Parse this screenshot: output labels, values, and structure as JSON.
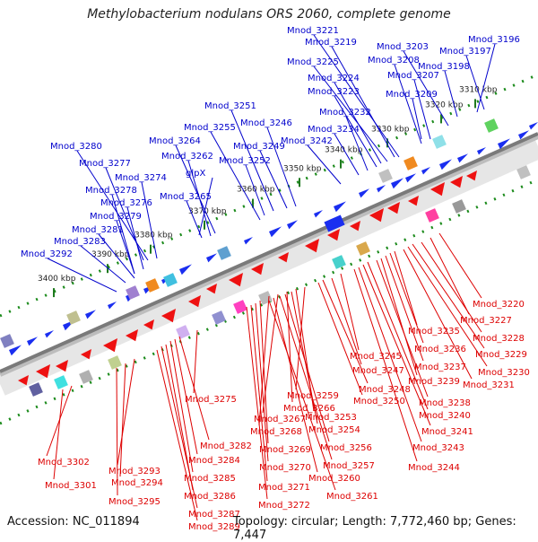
{
  "title": "Methylobacterium nodulans ORS 2060, complete genome",
  "footer": {
    "accession": "Accession: NC_011894",
    "summary": "Topology: circular; Length: 7,772,460 bp; Genes: 7,447"
  },
  "colors": {
    "forward_label": "#0000cc",
    "reverse_label": "#dd0000",
    "forward_gene": "#1a2ef0",
    "reverse_gene": "#ee1111",
    "backbone": "#888888",
    "tick": "#1a8a1a"
  },
  "ticks": [
    "3310 kbp",
    "3320 kbp",
    "3330 kbp",
    "3340 kbp",
    "3350 kbp",
    "3360 kbp",
    "3370 kbp",
    "3380 kbp",
    "3390 kbp",
    "3400 kbp"
  ],
  "forward_labels": [
    "Mnod_3196",
    "Mnod_3197",
    "Mnod_3198",
    "Mnod_3203",
    "Mnod_3209",
    "Mnod_3207",
    "Mnod_3208",
    "Mnod_3219",
    "Mnod_3221",
    "Mnod_3225",
    "Mnod_3224",
    "Mnod_3223",
    "Mnod_3232",
    "Mnod_3234",
    "Mnod_3242",
    "Mnod_3246",
    "Mnod_3249",
    "Mnod_3251",
    "Mnod_3255",
    "Mnod_3252",
    "Mnod_3264",
    "Mnod_3262",
    "glpX",
    "Mnod_3265",
    "Mnod_3280",
    "Mnod_3277",
    "Mnod_3274",
    "Mnod_3278",
    "Mnod_3276",
    "Mnod_3279",
    "Mnod_3281",
    "Mnod_3283",
    "Mnod_3292"
  ],
  "reverse_labels": [
    "Mnod_3220",
    "Mnod_3227",
    "Mnod_3228",
    "Mnod_3229",
    "Mnod_3230",
    "Mnod_3231",
    "Mnod_3235",
    "Mnod_3236",
    "Mnod_3237",
    "Mnod_3239",
    "Mnod_3238",
    "Mnod_3240",
    "Mnod_3241",
    "Mnod_3243",
    "Mnod_3244",
    "Mnod_3245",
    "Mnod_3247",
    "Mnod_3248",
    "Mnod_3250",
    "Mnod_3259",
    "Mnod_3266",
    "Mnod_3267",
    "Mnod_3268",
    "Mnod_3269",
    "Mnod_3270",
    "Mnod_3271",
    "Mnod_3272",
    "Mnod_3253",
    "Mnod_3254",
    "Mnod_3256",
    "Mnod_3257",
    "Mnod_3260",
    "Mnod_3261",
    "Mnod_3275",
    "Mnod_3282",
    "Mnod_3284",
    "Mnod_3285",
    "Mnod_3286",
    "Mnod_3287",
    "Mnod_3289",
    "Mnod_3293",
    "Mnod_3294",
    "Mnod_3295",
    "Mnod_3302",
    "Mnod_3301"
  ]
}
